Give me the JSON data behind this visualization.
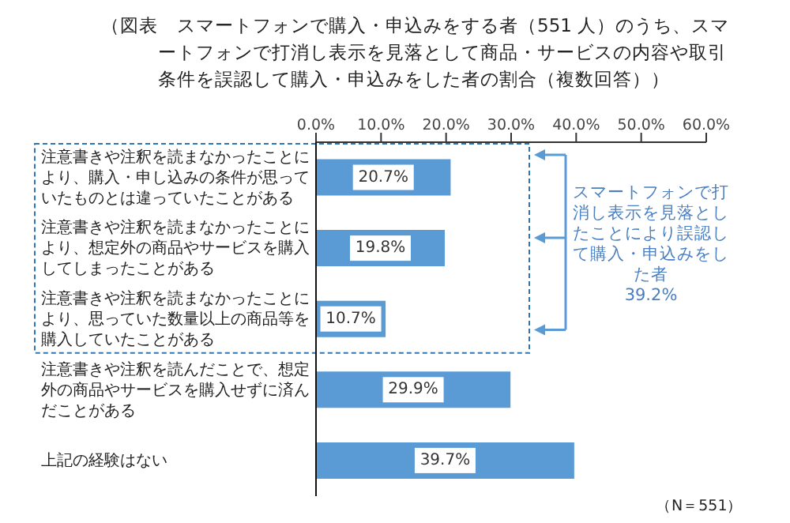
{
  "chart_data": {
    "type": "bar",
    "orientation": "horizontal",
    "title": "（図表　スマートフォンで購入・申込みをする者（551 人）のうち、スマートフォンで打消し表示を見落として商品・サービスの内容や取引条件を誤認して購入・申込みをした者の割合（複数回答））",
    "categories": [
      "注意書きや注釈を読まなかったことにより、購入・申し込みの条件が思っていたものとは違っていたことがある",
      "注意書きや注釈を読まなかったことにより、想定外の商品やサービスを購入してしまったことがある",
      "注意書きや注釈を読まなかったことにより、思っていた数量以上の商品等を購入していたことがある",
      "注意書きや注釈を読んだことで、想定外の商品やサービスを購入せずに済んだことがある",
      "上記の経験はない"
    ],
    "values": [
      20.7,
      19.8,
      10.7,
      29.9,
      39.7
    ],
    "value_labels": [
      "20.7%",
      "19.8%",
      "10.7%",
      "29.9%",
      "39.7%"
    ],
    "color": "#5b9bd5",
    "xlim": [
      0,
      60
    ],
    "xticks": [
      {
        "value": 0,
        "label": "0.0%"
      },
      {
        "value": 10,
        "label": "10.0%"
      },
      {
        "value": 20,
        "label": "20.0%"
      },
      {
        "value": 30,
        "label": "30.0%"
      },
      {
        "value": 40,
        "label": "40.0%"
      },
      {
        "value": 50,
        "label": "50.0%"
      },
      {
        "value": 60,
        "label": "60.0%"
      }
    ],
    "annotations": [
      "スマートフォンで打消し表示を見落としたことにより誤認して購入・申込みをした者 39.2%",
      "（N＝551）"
    ]
  }
}
